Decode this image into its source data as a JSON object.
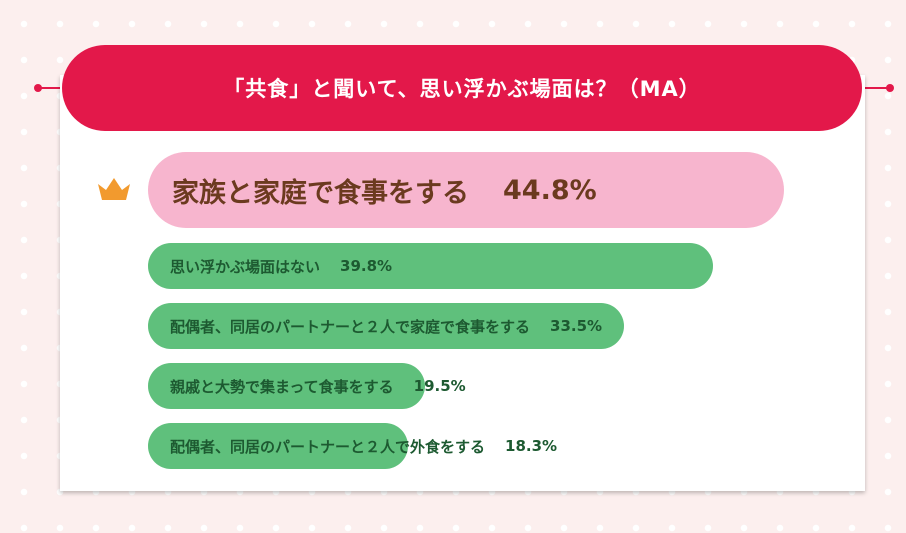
{
  "chart_data": {
    "type": "bar",
    "title": "「共食」と聞いて、思い浮かぶ場面は？（MA）",
    "categories": [
      "家族と家庭で食事をする",
      "思い浮かぶ場面はない",
      "配偶者、同居のパートナーと２人で家庭で食事をする",
      "親戚と大勢で集まって食事をする",
      "配偶者、同居のパートナーと２人で外食をする"
    ],
    "values": [
      44.8,
      39.8,
      33.5,
      19.5,
      18.3
    ],
    "value_labels": [
      "44.8%",
      "39.8%",
      "33.5%",
      "19.5%",
      "18.3%"
    ],
    "colors": [
      "#f7b5ce",
      "#5fc07c",
      "#5fc07c",
      "#5fc07c",
      "#5fc07c"
    ]
  }
}
